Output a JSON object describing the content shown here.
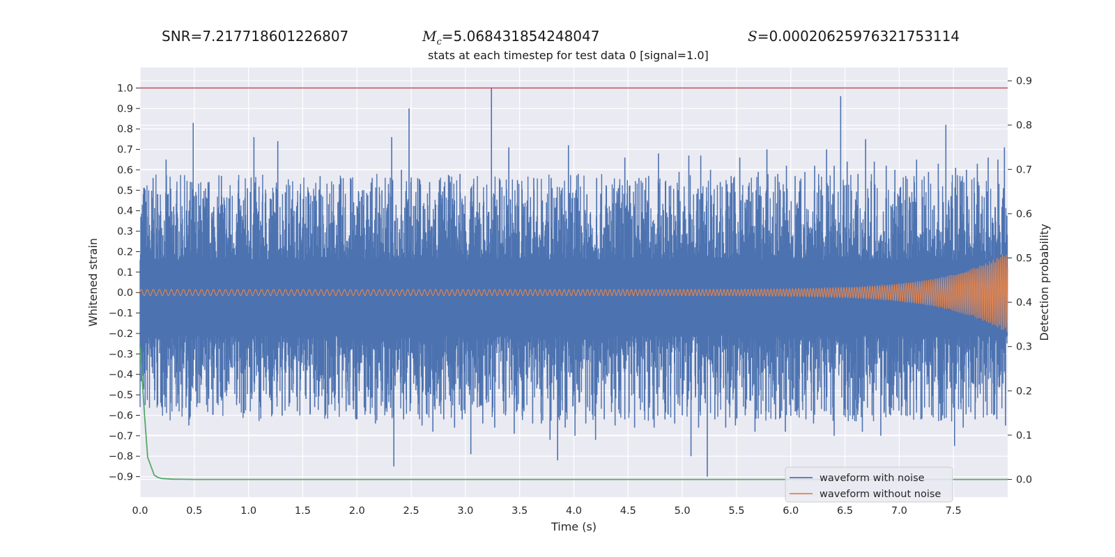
{
  "header": {
    "snr_label": "SNR=",
    "snr_value": "7.217718601226807",
    "mc_symbol": "M",
    "mc_subscript": "c",
    "mc_value": "=5.068431854248047",
    "s_symbol": "S",
    "s_value": "=0.00020625976321753114"
  },
  "colors": {
    "background": "#eaeaf2",
    "grid": "#ffffff",
    "noisy": "#4c72b0",
    "clean": "#dd8452",
    "probability": "#55a868",
    "threshold": "#c44e52"
  },
  "chart_data": {
    "type": "line",
    "title": "stats at each timestep for test data 0 [signal=1.0]",
    "xlabel": "Time (s)",
    "ylabel": "Whitened strain",
    "ylabel_right": "Detection probability",
    "xlim": [
      0.0,
      8.0
    ],
    "ylim": [
      -1.0,
      1.1
    ],
    "ylim_right": [
      -0.04,
      0.93
    ],
    "x_ticks": [
      "0.0",
      "0.5",
      "1.0",
      "1.5",
      "2.0",
      "2.5",
      "3.0",
      "3.5",
      "4.0",
      "4.5",
      "5.0",
      "5.5",
      "6.0",
      "6.5",
      "7.0",
      "7.5"
    ],
    "y_ticks": [
      "1.0",
      "0.9",
      "0.8",
      "0.7",
      "0.6",
      "0.5",
      "0.4",
      "0.3",
      "0.2",
      "0.1",
      "0.0",
      "−0.1",
      "−0.2",
      "−0.3",
      "−0.4",
      "−0.5",
      "−0.6",
      "−0.7",
      "−0.8",
      "−0.9"
    ],
    "y_ticks_right": [
      "0.9",
      "0.8",
      "0.7",
      "0.6",
      "0.5",
      "0.4",
      "0.3",
      "0.2",
      "0.1",
      "0.0"
    ],
    "threshold_line": {
      "axis": "y",
      "value": 1.0
    },
    "legend": {
      "placement": "bottom-right",
      "entries": [
        "waveform with noise",
        "waveform without noise"
      ]
    },
    "series": [
      {
        "name": "waveform with noise",
        "kind": "noisy-strain",
        "core_amplitude": 0.16,
        "spikes": [
          [
            0.03,
            0.48
          ],
          [
            0.12,
            0.56
          ],
          [
            0.19,
            0.4
          ],
          [
            0.24,
            0.65
          ],
          [
            0.31,
            0.42
          ],
          [
            0.39,
            0.36
          ],
          [
            0.45,
            0.4
          ],
          [
            0.49,
            0.83
          ],
          [
            0.58,
            0.46
          ],
          [
            0.66,
            0.39
          ],
          [
            0.75,
            0.57
          ],
          [
            0.82,
            0.46
          ],
          [
            0.92,
            0.38
          ],
          [
            0.99,
            0.51
          ],
          [
            1.05,
            0.76
          ],
          [
            1.13,
            0.48
          ],
          [
            1.2,
            0.46
          ],
          [
            1.27,
            0.74
          ],
          [
            1.34,
            0.49
          ],
          [
            1.42,
            0.4
          ],
          [
            1.48,
            0.46
          ],
          [
            1.57,
            0.38
          ],
          [
            1.66,
            0.57
          ],
          [
            1.76,
            0.34
          ],
          [
            1.84,
            0.43
          ],
          [
            1.94,
            0.56
          ],
          [
            2.05,
            0.5
          ],
          [
            2.14,
            0.56
          ],
          [
            2.23,
            0.5
          ],
          [
            2.32,
            0.76
          ],
          [
            2.41,
            0.6
          ],
          [
            2.48,
            0.9
          ],
          [
            2.58,
            0.55
          ],
          [
            2.67,
            0.54
          ],
          [
            2.76,
            0.55
          ],
          [
            2.86,
            0.54
          ],
          [
            2.95,
            0.58
          ],
          [
            3.05,
            0.51
          ],
          [
            3.13,
            0.44
          ],
          [
            3.24,
            1.0
          ],
          [
            3.32,
            0.55
          ],
          [
            3.4,
            0.71
          ],
          [
            3.48,
            0.55
          ],
          [
            3.57,
            0.45
          ],
          [
            3.63,
            0.56
          ],
          [
            3.71,
            0.45
          ],
          [
            3.79,
            0.56
          ],
          [
            3.88,
            0.48
          ],
          [
            3.95,
            0.72
          ],
          [
            4.04,
            0.58
          ],
          [
            4.12,
            0.48
          ],
          [
            4.21,
            0.56
          ],
          [
            4.3,
            0.52
          ],
          [
            4.41,
            0.51
          ],
          [
            4.47,
            0.66
          ],
          [
            4.6,
            0.56
          ],
          [
            4.69,
            0.57
          ],
          [
            4.78,
            0.68
          ],
          [
            4.88,
            0.52
          ],
          [
            4.97,
            0.59
          ],
          [
            5.06,
            0.67
          ],
          [
            5.17,
            0.67
          ],
          [
            5.26,
            0.6
          ],
          [
            5.35,
            0.54
          ],
          [
            5.45,
            0.57
          ],
          [
            5.53,
            0.66
          ],
          [
            5.61,
            0.52
          ],
          [
            5.7,
            0.59
          ],
          [
            5.78,
            0.7
          ],
          [
            5.88,
            0.58
          ],
          [
            5.96,
            0.62
          ],
          [
            6.04,
            0.57
          ],
          [
            6.13,
            0.59
          ],
          [
            6.22,
            0.62
          ],
          [
            6.33,
            0.7
          ],
          [
            6.4,
            0.62
          ],
          [
            6.46,
            0.96
          ],
          [
            6.52,
            0.64
          ],
          [
            6.62,
            0.58
          ],
          [
            6.69,
            0.75
          ],
          [
            6.77,
            0.64
          ],
          [
            6.88,
            0.62
          ],
          [
            6.96,
            0.6
          ],
          [
            7.06,
            0.57
          ],
          [
            7.16,
            0.65
          ],
          [
            7.27,
            0.59
          ],
          [
            7.36,
            0.63
          ],
          [
            7.43,
            0.82
          ],
          [
            7.52,
            0.61
          ],
          [
            7.62,
            0.6
          ],
          [
            7.72,
            0.63
          ],
          [
            7.82,
            0.66
          ],
          [
            7.91,
            0.65
          ],
          [
            7.97,
            0.71
          ],
          [
            0.06,
            -0.38
          ],
          [
            0.13,
            -0.42
          ],
          [
            0.22,
            -0.5
          ],
          [
            0.28,
            -0.54
          ],
          [
            0.35,
            -0.5
          ],
          [
            0.43,
            -0.46
          ],
          [
            0.45,
            -0.65
          ],
          [
            0.55,
            -0.54
          ],
          [
            0.63,
            -0.5
          ],
          [
            0.71,
            -0.54
          ],
          [
            0.8,
            -0.48
          ],
          [
            0.89,
            -0.55
          ],
          [
            0.96,
            -0.59
          ],
          [
            1.03,
            -0.52
          ],
          [
            1.11,
            -0.56
          ],
          [
            1.2,
            -0.5
          ],
          [
            1.31,
            -0.6
          ],
          [
            1.38,
            -0.54
          ],
          [
            1.45,
            -0.58
          ],
          [
            1.53,
            -0.52
          ],
          [
            1.61,
            -0.56
          ],
          [
            1.71,
            -0.6
          ],
          [
            1.8,
            -0.5
          ],
          [
            1.9,
            -0.58
          ],
          [
            1.99,
            -0.62
          ],
          [
            2.08,
            -0.58
          ],
          [
            2.17,
            -0.64
          ],
          [
            2.26,
            -0.58
          ],
          [
            2.34,
            -0.85
          ],
          [
            2.43,
            -0.62
          ],
          [
            2.49,
            -0.58
          ],
          [
            2.6,
            -0.65
          ],
          [
            2.7,
            -0.68
          ],
          [
            2.8,
            -0.62
          ],
          [
            2.9,
            -0.66
          ],
          [
            2.97,
            -0.62
          ],
          [
            3.05,
            -0.79
          ],
          [
            3.16,
            -0.64
          ],
          [
            3.27,
            -0.66
          ],
          [
            3.37,
            -0.6
          ],
          [
            3.45,
            -0.69
          ],
          [
            3.54,
            -0.58
          ],
          [
            3.62,
            -0.64
          ],
          [
            3.7,
            -0.64
          ],
          [
            3.78,
            -0.72
          ],
          [
            3.85,
            -0.82
          ],
          [
            3.92,
            -0.66
          ],
          [
            4.01,
            -0.7
          ],
          [
            4.11,
            -0.64
          ],
          [
            4.2,
            -0.72
          ],
          [
            4.28,
            -0.62
          ],
          [
            4.38,
            -0.65
          ],
          [
            4.47,
            -0.62
          ],
          [
            4.56,
            -0.66
          ],
          [
            4.65,
            -0.58
          ],
          [
            4.74,
            -0.66
          ],
          [
            4.84,
            -0.62
          ],
          [
            4.93,
            -0.64
          ],
          [
            5.0,
            -0.6
          ],
          [
            5.08,
            -0.8
          ],
          [
            5.15,
            -0.66
          ],
          [
            5.23,
            -0.9
          ],
          [
            5.3,
            -0.62
          ],
          [
            5.4,
            -0.66
          ],
          [
            5.49,
            -0.65
          ],
          [
            5.58,
            -0.6
          ],
          [
            5.67,
            -0.68
          ],
          [
            5.77,
            -0.58
          ],
          [
            5.86,
            -0.62
          ],
          [
            5.95,
            -0.68
          ],
          [
            6.05,
            -0.58
          ],
          [
            6.14,
            -0.62
          ],
          [
            6.21,
            -0.64
          ],
          [
            6.31,
            -0.58
          ],
          [
            6.4,
            -0.7
          ],
          [
            6.49,
            -0.6
          ],
          [
            6.58,
            -0.6
          ],
          [
            6.66,
            -0.68
          ],
          [
            6.75,
            -0.6
          ],
          [
            6.83,
            -0.7
          ],
          [
            6.92,
            -0.6
          ],
          [
            7.02,
            -0.6
          ],
          [
            7.1,
            -0.6
          ],
          [
            7.2,
            -0.62
          ],
          [
            7.3,
            -0.6
          ],
          [
            7.4,
            -0.6
          ],
          [
            7.51,
            -0.75
          ],
          [
            7.59,
            -0.66
          ],
          [
            7.7,
            -0.62
          ],
          [
            7.81,
            -0.6
          ],
          [
            7.9,
            -0.62
          ],
          [
            7.98,
            -0.65
          ]
        ]
      },
      {
        "name": "waveform without noise",
        "kind": "chirp",
        "amplitude_start": 0.015,
        "amplitude_end": 0.2,
        "frequency_start_hz": 18,
        "frequency_end_hz": 60
      },
      {
        "name": "detection probability",
        "axis": "right",
        "x": [
          0.0,
          0.04,
          0.07,
          0.1,
          0.13,
          0.16,
          0.2,
          0.3,
          0.5,
          1.0,
          8.0
        ],
        "values": [
          0.3,
          0.15,
          0.05,
          0.03,
          0.01,
          0.005,
          0.002,
          0.0005,
          0.0,
          0.0,
          0.0
        ]
      }
    ]
  }
}
